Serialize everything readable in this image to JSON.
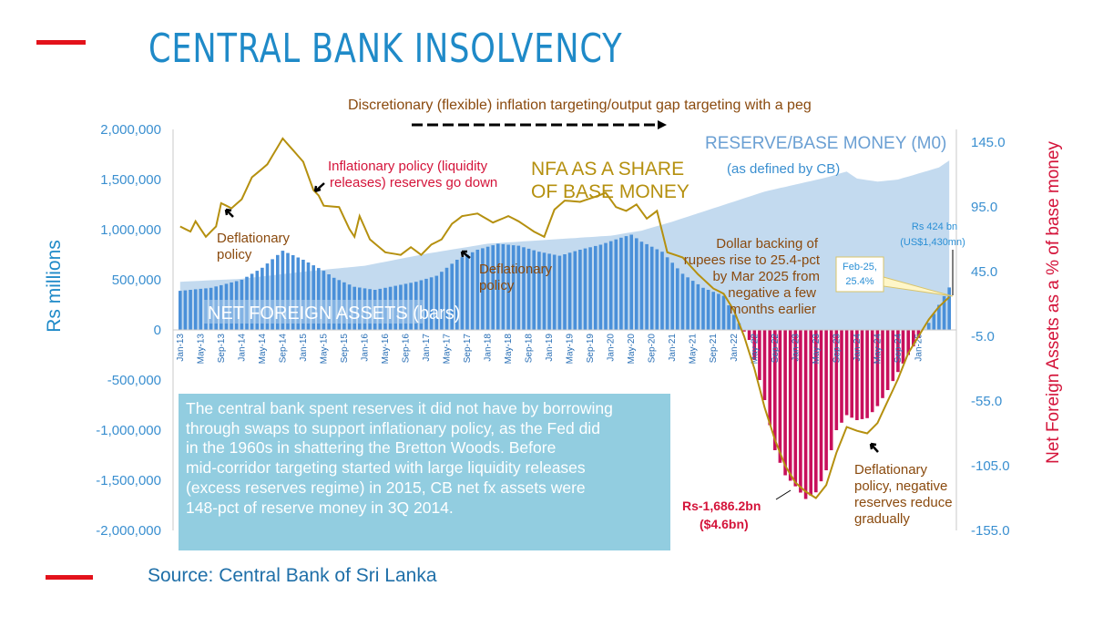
{
  "title": "CENTRAL BANK INSOLVENCY",
  "source": "Source: Central Bank of Sri Lanka",
  "colors": {
    "title": "#1f8ac8",
    "accent_red": "#e3121b",
    "bars_positive": "#4a90d9",
    "bars_negative": "#c8105c",
    "area": "#b9d3ec",
    "line": "#b5900f",
    "note_box": "#92cde0"
  },
  "note_box_text": "The central bank spent reserves it did not have by borrowing\nthrough swaps to support inflationary policy, as the Fed did\nin the 1960s in shattering the Bretton Woods. Before\nmid-corridor targeting started with large liquidity releases\n(excess reserves regime) in 2015, CB net fx assets were\n148-pct of  reserve money in 3Q 2014.",
  "chart_data": {
    "type": "bar",
    "title": "",
    "ylabel": "Rs millions",
    "y2label": "Net Foreign Assets as a % of base money",
    "ylim": [
      -2000000,
      2000000
    ],
    "y2lim": [
      -155,
      155
    ],
    "y_ticks": [
      "2,000,000",
      "1,500,000",
      "1,000,000",
      "500,000",
      "0",
      "-500,000",
      "-1,000,000",
      "-1,500,000",
      "-2,000,000"
    ],
    "y2_ticks": [
      "145.0",
      "95.0",
      "45.0",
      "-5.0",
      "-55.0",
      "-105.0",
      "-155.0"
    ],
    "x_tick_labels": [
      "Jan-13",
      "May-13",
      "Sep-13",
      "Jan-14",
      "May-14",
      "Sep-14",
      "Jan-15",
      "May-15",
      "Sep-15",
      "Jan-16",
      "May-16",
      "Sep-16",
      "Jan-17",
      "May-17",
      "Sep-17",
      "Jan-18",
      "May-18",
      "Sep-18",
      "Jan-19",
      "May-19",
      "Sep-19",
      "Jan-20",
      "May-20",
      "Sep-20",
      "Jan-21",
      "May-21",
      "Sep-21",
      "Jan-22",
      "May-22",
      "Sep-22",
      "Jan-23",
      "May-23",
      "Sep-23",
      "Jan-24",
      "May-24",
      "Sep-24",
      "Jan-25"
    ],
    "grid": false,
    "series": [
      {
        "name": "NET FOREIGN ASSETS (bars)",
        "type": "bar",
        "axis": "left",
        "anchors": [
          [
            0,
            390000
          ],
          [
            6,
            420000
          ],
          [
            12,
            500000
          ],
          [
            16,
            620000
          ],
          [
            20,
            790000
          ],
          [
            24,
            700000
          ],
          [
            28,
            590000
          ],
          [
            30,
            520000
          ],
          [
            34,
            430000
          ],
          [
            38,
            400000
          ],
          [
            42,
            440000
          ],
          [
            46,
            480000
          ],
          [
            50,
            540000
          ],
          [
            54,
            700000
          ],
          [
            58,
            800000
          ],
          [
            62,
            860000
          ],
          [
            66,
            840000
          ],
          [
            70,
            780000
          ],
          [
            74,
            740000
          ],
          [
            78,
            800000
          ],
          [
            82,
            850000
          ],
          [
            86,
            920000
          ],
          [
            88,
            950000
          ],
          [
            90,
            880000
          ],
          [
            94,
            780000
          ],
          [
            98,
            560000
          ],
          [
            102,
            420000
          ],
          [
            106,
            340000
          ],
          [
            108,
            150000
          ],
          [
            111,
            -100000
          ],
          [
            114,
            -700000
          ],
          [
            116,
            -1200000
          ],
          [
            118,
            -1450000
          ],
          [
            120,
            -1560000
          ],
          [
            122,
            -1686200
          ],
          [
            124,
            -1620000
          ],
          [
            126,
            -1400000
          ],
          [
            128,
            -1000000
          ],
          [
            130,
            -850000
          ],
          [
            132,
            -900000
          ],
          [
            134,
            -880000
          ],
          [
            136,
            -760000
          ],
          [
            138,
            -600000
          ],
          [
            140,
            -420000
          ],
          [
            142,
            -250000
          ],
          [
            144,
            -80000
          ],
          [
            146,
            70000
          ],
          [
            148,
            250000
          ],
          [
            150,
            424000
          ]
        ]
      },
      {
        "name": "RESERVE/BASE MONEY (M0)",
        "type": "area",
        "axis": "left",
        "anchors": [
          [
            0,
            480000
          ],
          [
            12,
            510000
          ],
          [
            24,
            580000
          ],
          [
            36,
            640000
          ],
          [
            48,
            760000
          ],
          [
            60,
            860000
          ],
          [
            72,
            900000
          ],
          [
            84,
            940000
          ],
          [
            90,
            990000
          ],
          [
            96,
            1080000
          ],
          [
            102,
            1180000
          ],
          [
            108,
            1280000
          ],
          [
            114,
            1380000
          ],
          [
            120,
            1450000
          ],
          [
            126,
            1520000
          ],
          [
            130,
            1580000
          ],
          [
            132,
            1510000
          ],
          [
            136,
            1480000
          ],
          [
            140,
            1500000
          ],
          [
            144,
            1560000
          ],
          [
            148,
            1620000
          ],
          [
            150,
            1690000
          ]
        ]
      },
      {
        "name": "NFA AS A SHARE OF BASE MONEY",
        "type": "line",
        "axis": "right",
        "anchors": [
          [
            0,
            80
          ],
          [
            2,
            76
          ],
          [
            3,
            84
          ],
          [
            5,
            72
          ],
          [
            7,
            80
          ],
          [
            8,
            98
          ],
          [
            10,
            94
          ],
          [
            12,
            101
          ],
          [
            14,
            118
          ],
          [
            17,
            128
          ],
          [
            20,
            148
          ],
          [
            24,
            130
          ],
          [
            26,
            108
          ],
          [
            27,
            104
          ],
          [
            28,
            96
          ],
          [
            31,
            95
          ],
          [
            33,
            78
          ],
          [
            34,
            72
          ],
          [
            35,
            88
          ],
          [
            37,
            70
          ],
          [
            40,
            60
          ],
          [
            43,
            58
          ],
          [
            45,
            64
          ],
          [
            47,
            58
          ],
          [
            49,
            66
          ],
          [
            51,
            70
          ],
          [
            53,
            82
          ],
          [
            55,
            88
          ],
          [
            58,
            90
          ],
          [
            61,
            83
          ],
          [
            64,
            88
          ],
          [
            66,
            84
          ],
          [
            69,
            76
          ],
          [
            71,
            72
          ],
          [
            73,
            93
          ],
          [
            75,
            100
          ],
          [
            78,
            99
          ],
          [
            81,
            103
          ],
          [
            83,
            106
          ],
          [
            85,
            95
          ],
          [
            87,
            92
          ],
          [
            89,
            97
          ],
          [
            91,
            86
          ],
          [
            93,
            92
          ],
          [
            95,
            60
          ],
          [
            98,
            56
          ],
          [
            101,
            43
          ],
          [
            104,
            32
          ],
          [
            106,
            28
          ],
          [
            108,
            15
          ],
          [
            110,
            -5
          ],
          [
            112,
            -30
          ],
          [
            114,
            -60
          ],
          [
            116,
            -85
          ],
          [
            118,
            -105
          ],
          [
            120,
            -118
          ],
          [
            122,
            -125
          ],
          [
            124,
            -130
          ],
          [
            126,
            -120
          ],
          [
            128,
            -95
          ],
          [
            130,
            -75
          ],
          [
            132,
            -78
          ],
          [
            134,
            -80
          ],
          [
            136,
            -72
          ],
          [
            138,
            -55
          ],
          [
            140,
            -38
          ],
          [
            142,
            -18
          ],
          [
            144,
            -5
          ],
          [
            146,
            8
          ],
          [
            148,
            18
          ],
          [
            150,
            25.4
          ]
        ]
      }
    ],
    "annotations": [
      {
        "text": "Discretionary (flexible) inflation targeting/output gap targeting with a peg",
        "color": "brown"
      },
      {
        "text": "RESERVE/BASE MONEY (M0)",
        "color": "blue"
      },
      {
        "text": "(as defined by CB)",
        "color": "blue"
      },
      {
        "text": "NFA AS A SHARE",
        "color": "gold"
      },
      {
        "text": "OF BASE MONEY",
        "color": "gold"
      },
      {
        "text": "Inflationary policy (liquidity",
        "color": "red"
      },
      {
        "text": "releases) reserves go down",
        "color": "red"
      },
      {
        "text": "Deflationary",
        "color": "brown"
      },
      {
        "text": "policy",
        "color": "brown"
      },
      {
        "text": "Deflationary",
        "color": "brown"
      },
      {
        "text": "policy",
        "color": "brown"
      },
      {
        "text": "NET FOREIGN ASSETS (bars)",
        "color": "white"
      },
      {
        "text": "Dollar backing of",
        "color": "brown"
      },
      {
        "text": "rupees rise to 25.4-pct",
        "color": "brown"
      },
      {
        "text": "by Mar 2025 from",
        "color": "brown"
      },
      {
        "text": "negative a few",
        "color": "brown"
      },
      {
        "text": "months earlier",
        "color": "brown"
      },
      {
        "text": "Rs 424 bn",
        "color": "blue"
      },
      {
        "text": "(US$1,430mn)",
        "color": "blue"
      },
      {
        "text": "Feb-25,",
        "color": "blue"
      },
      {
        "text": "25.4%",
        "color": "blue"
      },
      {
        "text": "Rs-1,686.2bn",
        "color": "red"
      },
      {
        "text": "($4.6bn)",
        "color": "red"
      },
      {
        "text": "Deflationary",
        "color": "brown"
      },
      {
        "text": "policy, negative",
        "color": "brown"
      },
      {
        "text": "reserves reduce",
        "color": "brown"
      },
      {
        "text": "gradually",
        "color": "brown"
      }
    ]
  }
}
